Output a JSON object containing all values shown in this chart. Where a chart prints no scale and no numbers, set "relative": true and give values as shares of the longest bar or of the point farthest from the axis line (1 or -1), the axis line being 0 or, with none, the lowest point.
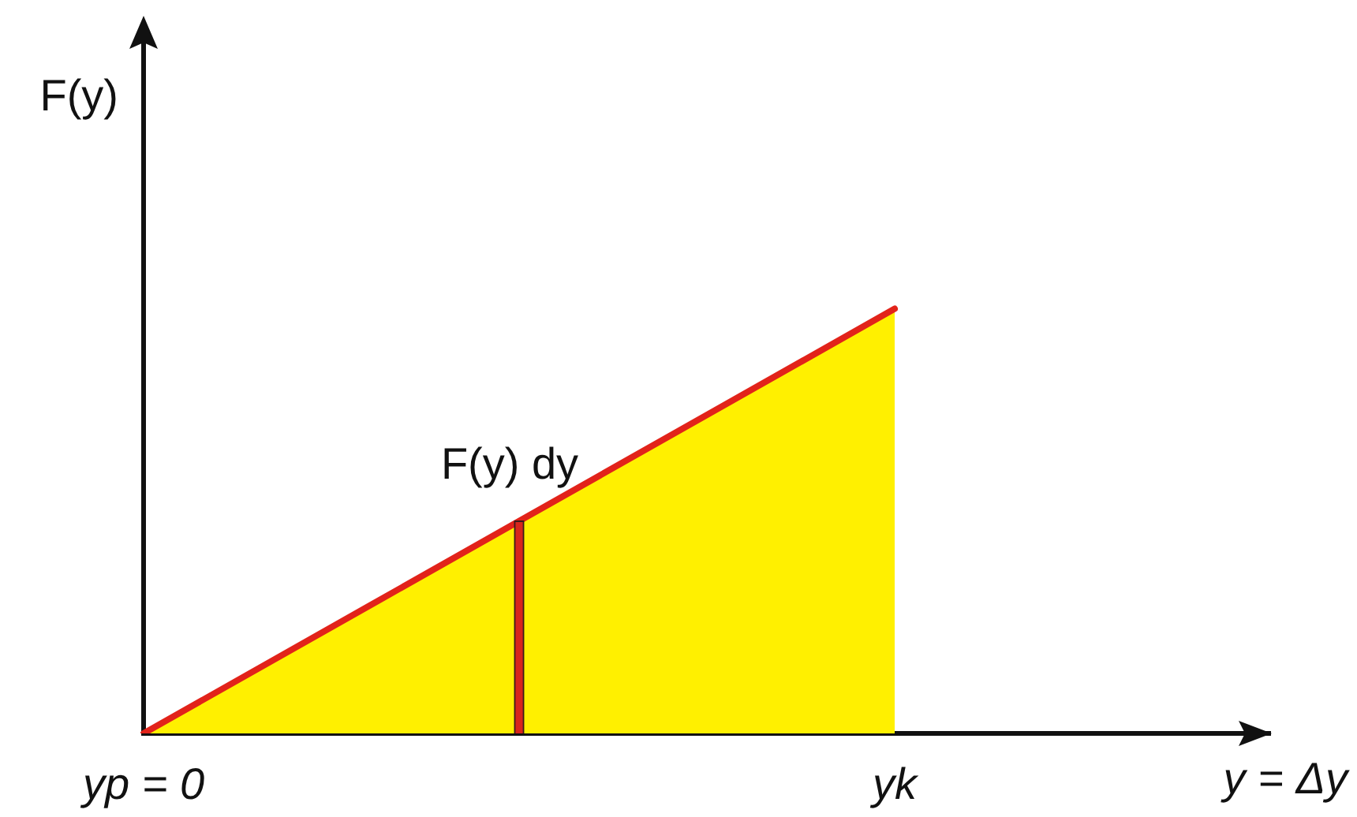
{
  "chart_data": {
    "type": "area",
    "relative": true,
    "ylabel": "F(y)",
    "xlabel": "y = Δy",
    "categories": [
      "yp = 0",
      null,
      "yk",
      null
    ],
    "series": [
      {
        "color": "#fff000",
        "values": [
          0,
          0.5,
          1,
          null
        ]
      },
      {
        "type": "bar",
        "color": "#d8261c",
        "values": [
          null,
          0.5,
          null,
          null
        ]
      }
    ],
    "annotations": [
      "F(y) dy"
    ],
    "grid": false,
    "legend": false
  }
}
